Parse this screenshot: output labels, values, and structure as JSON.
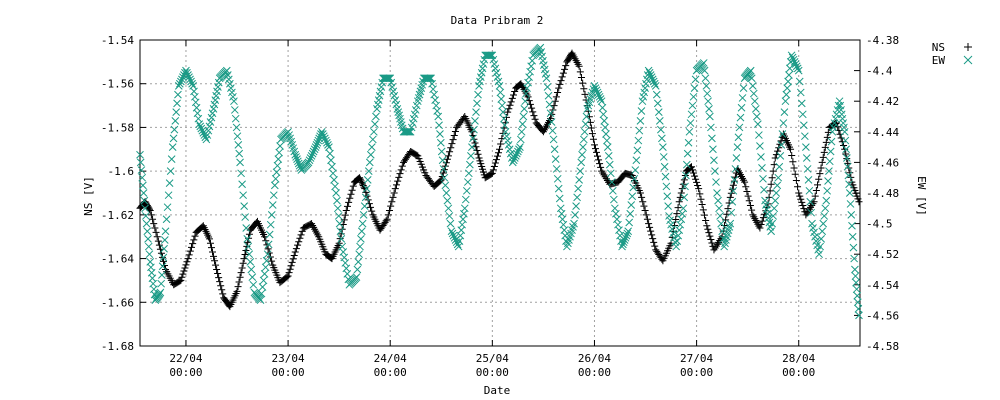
{
  "chart_data": {
    "type": "scatter",
    "title": "Data Pribram 2",
    "xlabel": "Date",
    "ylabel": "NS [V]",
    "y2label": "EW [V]",
    "ylim": [
      -1.68,
      -1.54
    ],
    "y2lim": [
      -4.58,
      -4.38
    ],
    "xlim": [
      0,
      7.05
    ],
    "grid": true,
    "legend_position": "top-right-outside",
    "y_ticks": [
      "-1.54",
      "-1.56",
      "-1.58",
      "-1.6",
      "-1.62",
      "-1.64",
      "-1.66",
      "-1.68"
    ],
    "y2_ticks": [
      "-4.38",
      "-4.4",
      "-4.42",
      "-4.44",
      "-4.46",
      "-4.48",
      "-4.5",
      "-4.52",
      "-4.54",
      "-4.56",
      "-4.58"
    ],
    "x_ticks": [
      {
        "value": 0.45,
        "date": "22/04",
        "time": "00:00"
      },
      {
        "value": 1.45,
        "date": "23/04",
        "time": "00:00"
      },
      {
        "value": 2.45,
        "date": "24/04",
        "time": "00:00"
      },
      {
        "value": 3.45,
        "date": "25/04",
        "time": "00:00"
      },
      {
        "value": 4.45,
        "date": "26/04",
        "time": "00:00"
      },
      {
        "value": 5.45,
        "date": "27/04",
        "time": "00:00"
      },
      {
        "value": 6.45,
        "date": "28/04",
        "time": "00:00"
      }
    ],
    "series": [
      {
        "name": "NS",
        "marker": "+",
        "axis": "left",
        "color": "#000000",
        "points": [
          [
            0.0,
            -1.617
          ],
          [
            0.05,
            -1.614
          ],
          [
            0.1,
            -1.618
          ],
          [
            0.18,
            -1.632
          ],
          [
            0.25,
            -1.645
          ],
          [
            0.33,
            -1.652
          ],
          [
            0.4,
            -1.65
          ],
          [
            0.47,
            -1.64
          ],
          [
            0.55,
            -1.628
          ],
          [
            0.62,
            -1.625
          ],
          [
            0.68,
            -1.631
          ],
          [
            0.75,
            -1.645
          ],
          [
            0.82,
            -1.658
          ],
          [
            0.88,
            -1.662
          ],
          [
            0.95,
            -1.655
          ],
          [
            1.02,
            -1.64
          ],
          [
            1.08,
            -1.627
          ],
          [
            1.15,
            -1.623
          ],
          [
            1.22,
            -1.63
          ],
          [
            1.3,
            -1.643
          ],
          [
            1.37,
            -1.651
          ],
          [
            1.45,
            -1.648
          ],
          [
            1.52,
            -1.637
          ],
          [
            1.6,
            -1.626
          ],
          [
            1.68,
            -1.624
          ],
          [
            1.75,
            -1.63
          ],
          [
            1.82,
            -1.638
          ],
          [
            1.88,
            -1.64
          ],
          [
            1.95,
            -1.633
          ],
          [
            2.02,
            -1.618
          ],
          [
            2.1,
            -1.605
          ],
          [
            2.15,
            -1.603
          ],
          [
            2.2,
            -1.608
          ],
          [
            2.28,
            -1.62
          ],
          [
            2.35,
            -1.627
          ],
          [
            2.42,
            -1.622
          ],
          [
            2.5,
            -1.608
          ],
          [
            2.58,
            -1.596
          ],
          [
            2.65,
            -1.591
          ],
          [
            2.72,
            -1.593
          ],
          [
            2.8,
            -1.602
          ],
          [
            2.88,
            -1.607
          ],
          [
            2.95,
            -1.604
          ],
          [
            3.02,
            -1.593
          ],
          [
            3.1,
            -1.58
          ],
          [
            3.18,
            -1.575
          ],
          [
            3.25,
            -1.582
          ],
          [
            3.32,
            -1.594
          ],
          [
            3.38,
            -1.603
          ],
          [
            3.45,
            -1.601
          ],
          [
            3.52,
            -1.59
          ],
          [
            3.6,
            -1.573
          ],
          [
            3.68,
            -1.562
          ],
          [
            3.73,
            -1.56
          ],
          [
            3.8,
            -1.566
          ],
          [
            3.88,
            -1.578
          ],
          [
            3.95,
            -1.582
          ],
          [
            4.02,
            -1.576
          ],
          [
            4.1,
            -1.562
          ],
          [
            4.18,
            -1.55
          ],
          [
            4.23,
            -1.546
          ],
          [
            4.3,
            -1.552
          ],
          [
            4.38,
            -1.57
          ],
          [
            4.45,
            -1.588
          ],
          [
            4.52,
            -1.6
          ],
          [
            4.6,
            -1.606
          ],
          [
            4.68,
            -1.605
          ],
          [
            4.75,
            -1.601
          ],
          [
            4.82,
            -1.602
          ],
          [
            4.9,
            -1.61
          ],
          [
            4.98,
            -1.624
          ],
          [
            5.05,
            -1.636
          ],
          [
            5.12,
            -1.641
          ],
          [
            5.2,
            -1.633
          ],
          [
            5.28,
            -1.614
          ],
          [
            5.35,
            -1.6
          ],
          [
            5.4,
            -1.598
          ],
          [
            5.47,
            -1.608
          ],
          [
            5.55,
            -1.625
          ],
          [
            5.62,
            -1.636
          ],
          [
            5.7,
            -1.63
          ],
          [
            5.78,
            -1.612
          ],
          [
            5.85,
            -1.599
          ],
          [
            5.92,
            -1.605
          ],
          [
            6.0,
            -1.62
          ],
          [
            6.07,
            -1.626
          ],
          [
            6.15,
            -1.615
          ],
          [
            6.22,
            -1.594
          ],
          [
            6.3,
            -1.583
          ],
          [
            6.37,
            -1.59
          ],
          [
            6.45,
            -1.61
          ],
          [
            6.52,
            -1.62
          ],
          [
            6.6,
            -1.614
          ],
          [
            6.68,
            -1.596
          ],
          [
            6.75,
            -1.58
          ],
          [
            6.82,
            -1.578
          ],
          [
            6.9,
            -1.59
          ],
          [
            6.97,
            -1.605
          ],
          [
            7.04,
            -1.614
          ]
        ]
      },
      {
        "name": "EW",
        "marker": "x",
        "axis": "right",
        "color": "#1a9a86",
        "points": [
          [
            0.0,
            -4.455
          ],
          [
            0.05,
            -4.49
          ],
          [
            0.1,
            -4.525
          ],
          [
            0.15,
            -4.55
          ],
          [
            0.2,
            -4.545
          ],
          [
            0.25,
            -4.505
          ],
          [
            0.32,
            -4.45
          ],
          [
            0.38,
            -4.41
          ],
          [
            0.45,
            -4.4
          ],
          [
            0.52,
            -4.41
          ],
          [
            0.58,
            -4.435
          ],
          [
            0.65,
            -4.445
          ],
          [
            0.72,
            -4.425
          ],
          [
            0.78,
            -4.405
          ],
          [
            0.85,
            -4.4
          ],
          [
            0.92,
            -4.42
          ],
          [
            0.98,
            -4.46
          ],
          [
            1.05,
            -4.51
          ],
          [
            1.12,
            -4.545
          ],
          [
            1.18,
            -4.55
          ],
          [
            1.25,
            -4.52
          ],
          [
            1.32,
            -4.475
          ],
          [
            1.38,
            -4.445
          ],
          [
            1.45,
            -4.44
          ],
          [
            1.52,
            -4.455
          ],
          [
            1.58,
            -4.465
          ],
          [
            1.65,
            -4.46
          ],
          [
            1.72,
            -4.45
          ],
          [
            1.78,
            -4.44
          ],
          [
            1.85,
            -4.45
          ],
          [
            1.92,
            -4.48
          ],
          [
            1.98,
            -4.515
          ],
          [
            2.05,
            -4.54
          ],
          [
            2.12,
            -4.535
          ],
          [
            2.18,
            -4.5
          ],
          [
            2.25,
            -4.46
          ],
          [
            2.32,
            -4.425
          ],
          [
            2.38,
            -4.405
          ],
          [
            2.45,
            -4.405
          ],
          [
            2.52,
            -4.425
          ],
          [
            2.58,
            -4.44
          ],
          [
            2.65,
            -4.44
          ],
          [
            2.72,
            -4.42
          ],
          [
            2.78,
            -4.405
          ],
          [
            2.85,
            -4.405
          ],
          [
            2.92,
            -4.43
          ],
          [
            2.98,
            -4.47
          ],
          [
            3.05,
            -4.505
          ],
          [
            3.12,
            -4.515
          ],
          [
            3.18,
            -4.49
          ],
          [
            3.25,
            -4.45
          ],
          [
            3.32,
            -4.41
          ],
          [
            3.38,
            -4.39
          ],
          [
            3.45,
            -4.39
          ],
          [
            3.52,
            -4.41
          ],
          [
            3.58,
            -4.44
          ],
          [
            3.65,
            -4.46
          ],
          [
            3.72,
            -4.45
          ],
          [
            3.78,
            -4.415
          ],
          [
            3.85,
            -4.39
          ],
          [
            3.92,
            -4.385
          ],
          [
            3.98,
            -4.405
          ],
          [
            4.05,
            -4.445
          ],
          [
            4.12,
            -4.49
          ],
          [
            4.18,
            -4.515
          ],
          [
            4.25,
            -4.5
          ],
          [
            4.32,
            -4.46
          ],
          [
            4.38,
            -4.425
          ],
          [
            4.45,
            -4.41
          ],
          [
            4.52,
            -4.42
          ],
          [
            4.58,
            -4.45
          ],
          [
            4.65,
            -4.49
          ],
          [
            4.72,
            -4.515
          ],
          [
            4.78,
            -4.505
          ],
          [
            4.85,
            -4.465
          ],
          [
            4.92,
            -4.42
          ],
          [
            4.98,
            -4.4
          ],
          [
            5.05,
            -4.41
          ],
          [
            5.12,
            -4.45
          ],
          [
            5.18,
            -4.495
          ],
          [
            5.25,
            -4.515
          ],
          [
            5.32,
            -4.49
          ],
          [
            5.38,
            -4.44
          ],
          [
            5.45,
            -4.4
          ],
          [
            5.52,
            -4.395
          ],
          [
            5.58,
            -4.43
          ],
          [
            5.65,
            -4.48
          ],
          [
            5.72,
            -4.515
          ],
          [
            5.78,
            -4.5
          ],
          [
            5.85,
            -4.45
          ],
          [
            5.92,
            -4.405
          ],
          [
            5.98,
            -4.4
          ],
          [
            6.05,
            -4.435
          ],
          [
            6.12,
            -4.485
          ],
          [
            6.18,
            -4.505
          ],
          [
            6.25,
            -4.47
          ],
          [
            6.32,
            -4.42
          ],
          [
            6.38,
            -4.39
          ],
          [
            6.45,
            -4.4
          ],
          [
            6.52,
            -4.45
          ],
          [
            6.58,
            -4.5
          ],
          [
            6.65,
            -4.52
          ],
          [
            6.72,
            -4.485
          ],
          [
            6.78,
            -4.44
          ],
          [
            6.85,
            -4.42
          ],
          [
            6.9,
            -4.44
          ],
          [
            6.95,
            -4.48
          ],
          [
            7.0,
            -4.53
          ],
          [
            7.04,
            -4.56
          ]
        ]
      }
    ]
  }
}
